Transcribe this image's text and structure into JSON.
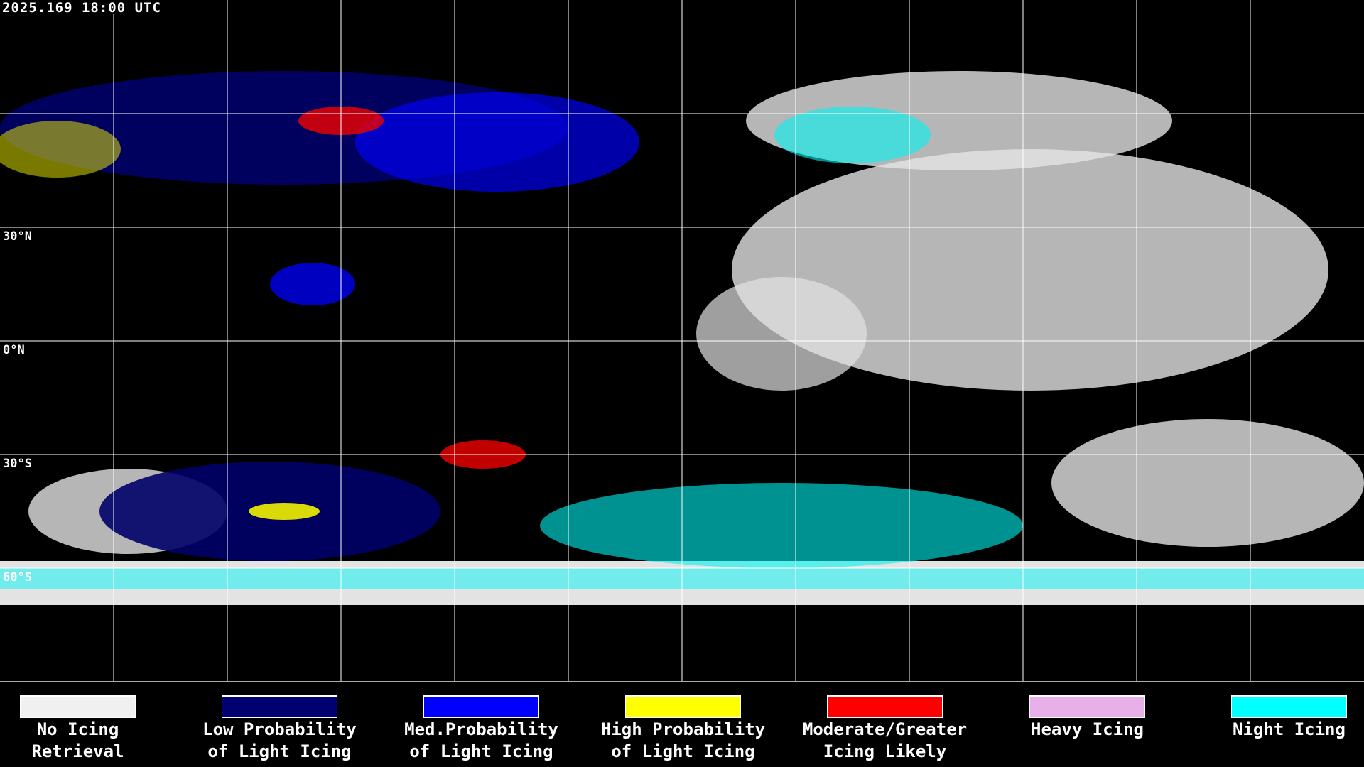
{
  "timestamp": "2025.169 18:00 UTC",
  "latitude_labels": [
    "30°N",
    "0°N",
    "30°S",
    "60°S"
  ],
  "legend": [
    {
      "line1": "No Icing",
      "line2": "Retrieval",
      "color": "#f0f0f0"
    },
    {
      "line1": "Low Probability",
      "line2": "of Light Icing",
      "color": "#000070"
    },
    {
      "line1": "Med.Probability",
      "line2": "of Light Icing",
      "color": "#0000ff"
    },
    {
      "line1": "High Probability",
      "line2": "of Light Icing",
      "color": "#ffff00"
    },
    {
      "line1": "Moderate/Greater",
      "line2": "Icing Likely",
      "color": "#ff0000"
    },
    {
      "line1": "Heavy Icing",
      "line2": "",
      "color": "#e8b0e8"
    },
    {
      "line1": "Night Icing",
      "line2": "",
      "color": "#00ffff"
    }
  ]
}
